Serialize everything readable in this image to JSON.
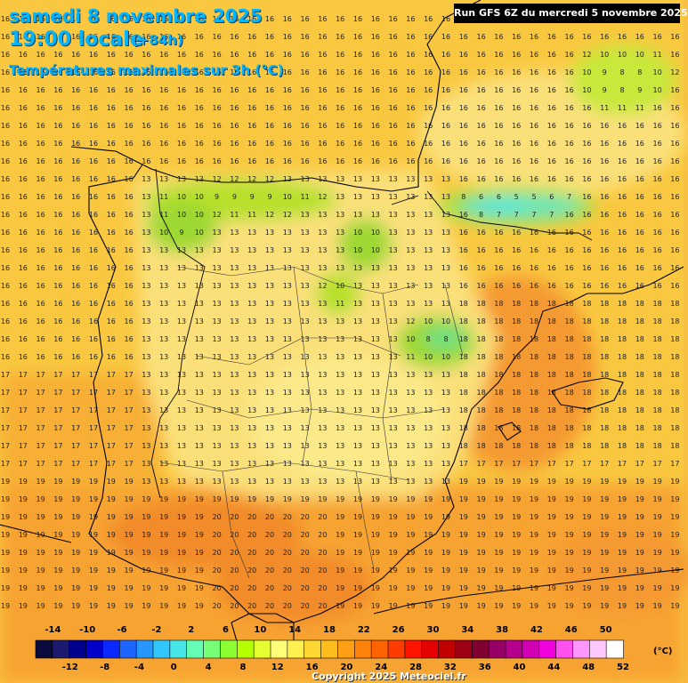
{
  "header": {
    "date": "samedi 8 novembre 2025",
    "time": "19:00 locale",
    "offset": "(+84h)",
    "subtitle": "Températures maximales sur 3h (°C)",
    "run": "Run GFS 6Z du mercredi 5 novembre 2025"
  },
  "legend": {
    "unit": "(°C)",
    "top_labels": [
      "-14",
      "-10",
      "-6",
      "-2",
      "2",
      "6",
      "10",
      "14",
      "18",
      "22",
      "26",
      "30",
      "34",
      "38",
      "42",
      "46",
      "50"
    ],
    "bottom_labels": [
      "-12",
      "-8",
      "-4",
      "0",
      "4",
      "8",
      "12",
      "16",
      "20",
      "24",
      "28",
      "32",
      "36",
      "40",
      "44",
      "48",
      "52"
    ],
    "colors": [
      "#0a0a3c",
      "#1a1a6e",
      "#00008c",
      "#0000c8",
      "#0a28ff",
      "#1e64ff",
      "#2896ff",
      "#32c8ff",
      "#46e6e6",
      "#64ffb4",
      "#78ff78",
      "#8cff32",
      "#b4ff00",
      "#e6ff32",
      "#ffff78",
      "#fff050",
      "#ffd732",
      "#ffbe1e",
      "#ffa014",
      "#ff820a",
      "#ff6400",
      "#ff3c00",
      "#ff1400",
      "#e60000",
      "#be0000",
      "#9b0014",
      "#800032",
      "#960064",
      "#b4008c",
      "#d200b4",
      "#f000dc",
      "#ff50f0",
      "#ff96ff",
      "#ffc8ff",
      "#ffffff"
    ]
  },
  "copyright": "Copyright 2025 Meteociel.fr"
}
